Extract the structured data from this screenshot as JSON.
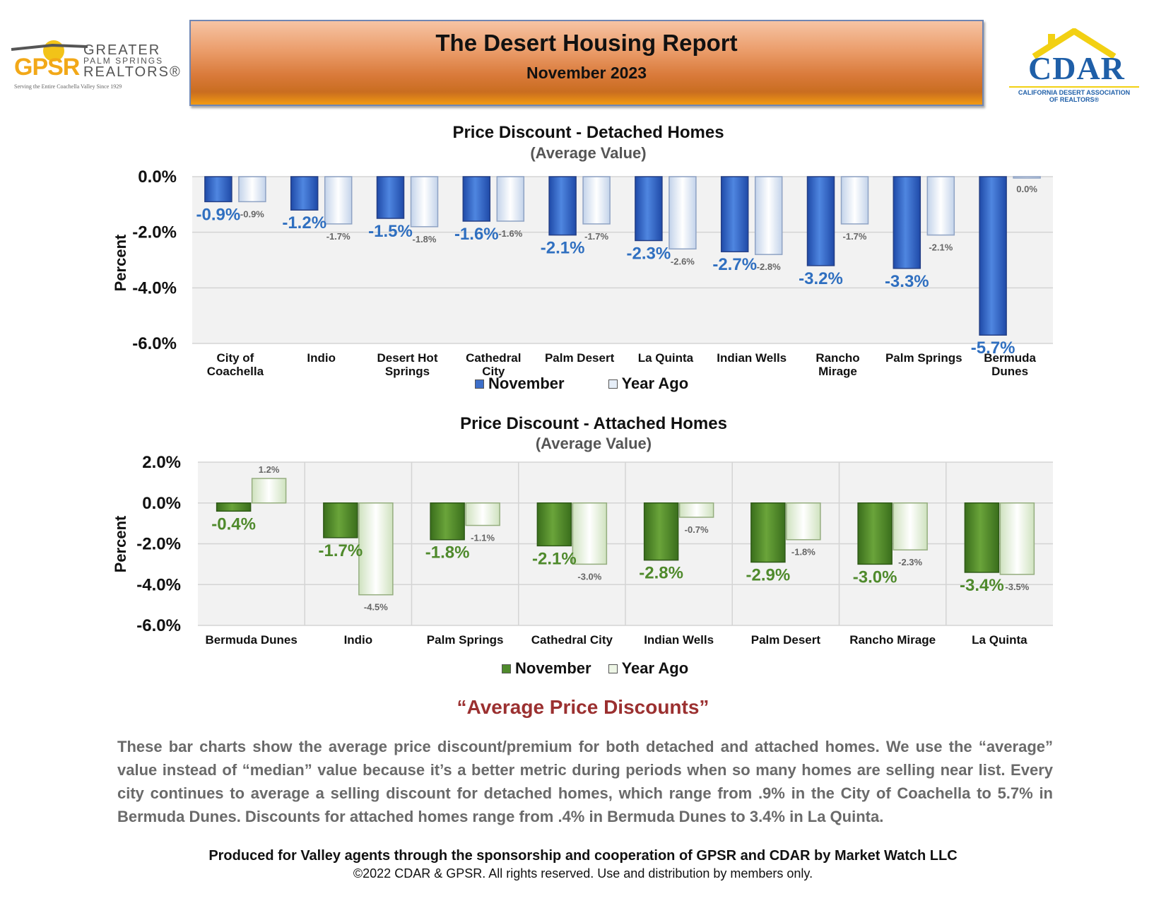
{
  "header": {
    "title": "The Desert Housing Report",
    "subtitle": "November 2023"
  },
  "logos": {
    "gpsr_abbrev": "GPSR",
    "gpsr_line1": "GREATER",
    "gpsr_line2": "PALM SPRINGS",
    "gpsr_line3": "REALTORS®",
    "gpsr_tagline": "Serving the Entire Coachella Valley Since 1929",
    "cdar_abbrev": "CDAR",
    "cdar_line1": "CALIFORNIA DESERT ASSOCIATION",
    "cdar_line2": "OF REALTORS®"
  },
  "colors": {
    "november_detached": "#3d6fc9",
    "november_attached": "#4f8a2c",
    "year_ago_detached": "#e6eef8",
    "year_ago_attached": "#eef6e6",
    "label_blue": "#2f6fc0",
    "label_green": "#4f8a2c",
    "heading_red": "#9b3030"
  },
  "chart_data": [
    {
      "type": "bar",
      "title": "Price Discount - Detached Homes",
      "subtitle": "(Average Value)",
      "xlabel": "",
      "ylabel": "Percent",
      "ylim": [
        -6.0,
        0.0
      ],
      "yticks": [
        "0.0%",
        "-2.0%",
        "-4.0%",
        "-6.0%"
      ],
      "categories": [
        "City of Coachella",
        "Indio",
        "Desert Hot Springs",
        "Cathedral City",
        "Palm Desert",
        "La Quinta",
        "Indian Wells",
        "Rancho Mirage",
        "Palm Springs",
        "Bermuda Dunes"
      ],
      "series": [
        {
          "name": "November",
          "values": [
            -0.9,
            -1.2,
            -1.5,
            -1.6,
            -2.1,
            -2.3,
            -2.7,
            -3.2,
            -3.3,
            -5.7
          ],
          "labels": [
            "-0.9%",
            "-1.2%",
            "-1.5%",
            "-1.6%",
            "-2.1%",
            "-2.3%",
            "-2.7%",
            "-3.2%",
            "-3.3%",
            "-5.7%"
          ]
        },
        {
          "name": "Year Ago",
          "values": [
            -0.9,
            -1.7,
            -1.8,
            -1.6,
            -1.7,
            -2.6,
            -2.8,
            -1.7,
            -2.1,
            0.0
          ],
          "labels": [
            "-0.9%",
            "-1.7%",
            "-1.8%",
            "-1.6%",
            "-1.7%",
            "-2.6%",
            "-2.8%",
            "-1.7%",
            "-2.1%",
            "0.0%"
          ]
        }
      ],
      "grid": true,
      "legend": "bottom-center"
    },
    {
      "type": "bar",
      "title": "Price Discount - Attached Homes",
      "subtitle": "(Average Value)",
      "xlabel": "",
      "ylabel": "Percent",
      "ylim": [
        -6.0,
        2.0
      ],
      "yticks": [
        "2.0%",
        "0.0%",
        "-2.0%",
        "-4.0%",
        "-6.0%"
      ],
      "categories": [
        "Bermuda Dunes",
        "Indio",
        "Palm Springs",
        "Cathedral City",
        "Indian Wells",
        "Palm Desert",
        "Rancho Mirage",
        "La Quinta"
      ],
      "series": [
        {
          "name": "November",
          "values": [
            -0.4,
            -1.7,
            -1.8,
            -2.1,
            -2.8,
            -2.9,
            -3.0,
            -3.4
          ],
          "labels": [
            "-0.4%",
            "-1.7%",
            "-1.8%",
            "-2.1%",
            "-2.8%",
            "-2.9%",
            "-3.0%",
            "-3.4%"
          ]
        },
        {
          "name": "Year Ago",
          "values": [
            1.2,
            -4.5,
            -1.1,
            -3.0,
            -0.7,
            -1.8,
            -2.3,
            -3.5
          ],
          "labels": [
            "1.2%",
            "-4.5%",
            "-1.1%",
            "-3.0%",
            "-0.7%",
            "-1.8%",
            "-2.3%",
            "-3.5%"
          ]
        }
      ],
      "grid": true,
      "legend": "bottom-center"
    }
  ],
  "summary": {
    "heading": "“Average Price Discounts”",
    "paragraph": "These bar charts show the average price discount/premium for both detached and attached homes. We use the “average” value instead of “median” value because it’s a better metric during periods when so many homes are selling near list. Every city continues to average a selling discount for detached homes, which range from .9% in the City of Coachella to 5.7% in Bermuda Dunes. Discounts for attached homes range from .4% in Bermuda Dunes to 3.4% in La Quinta.",
    "credit": "Produced for Valley agents through the sponsorship and cooperation of GPSR and CDAR by Market Watch LLC",
    "copyright": "©2022 CDAR & GPSR.  All rights reserved.  Use and distribution by members only."
  }
}
